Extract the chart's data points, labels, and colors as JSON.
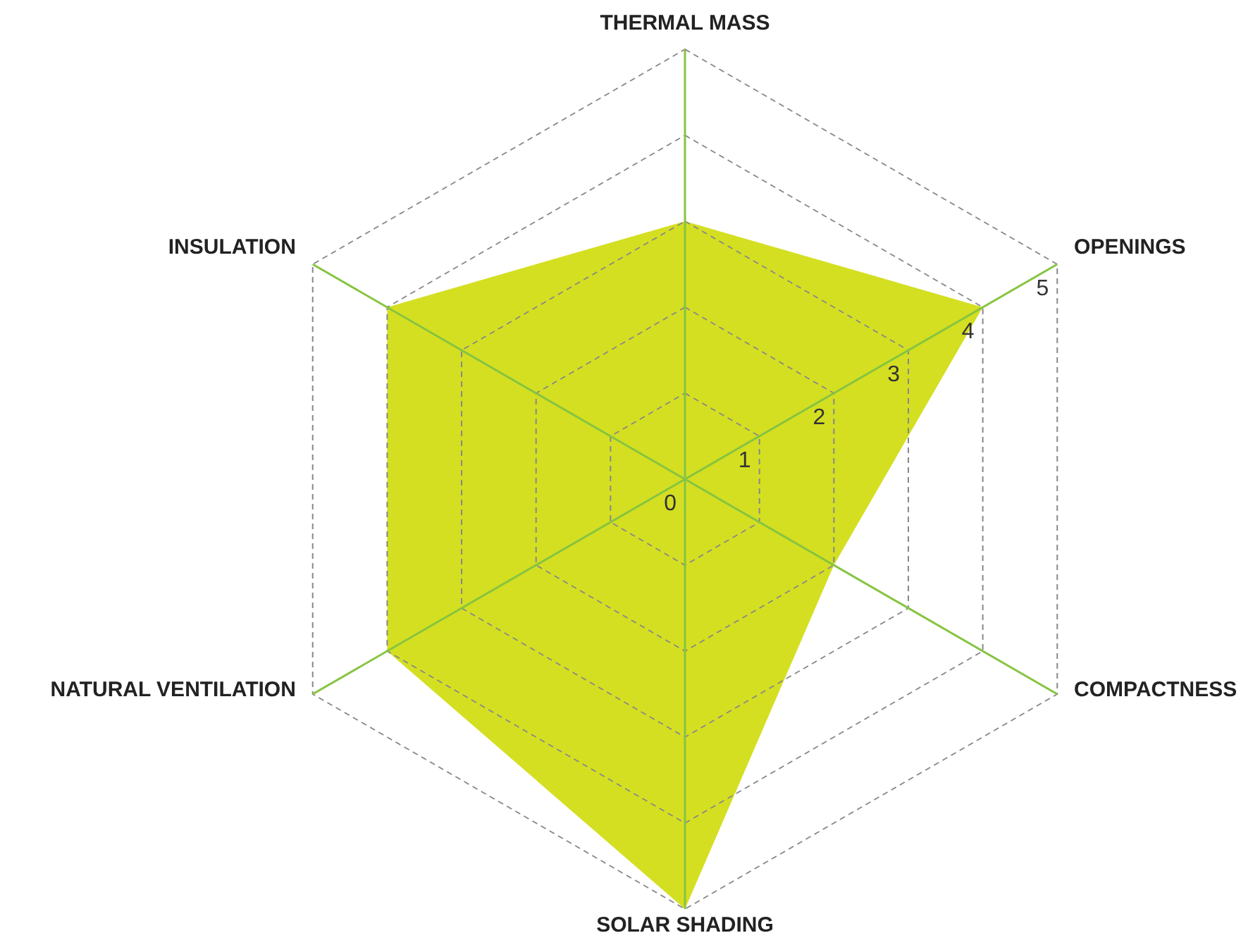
{
  "chart_data": {
    "type": "radar",
    "categories": [
      "THERMAL MASS",
      "OPENINGS",
      "COMPACTNESS",
      "SOLAR SHADING",
      "NATURAL VENTILATION",
      "INSULATION"
    ],
    "series": [
      {
        "color": "#d4df22",
        "values": [
          3,
          4,
          2,
          5,
          4,
          4
        ]
      }
    ],
    "ylim": [
      0,
      5
    ],
    "yticks": [
      0,
      1,
      2,
      3,
      4,
      5
    ],
    "grid": true
  }
}
